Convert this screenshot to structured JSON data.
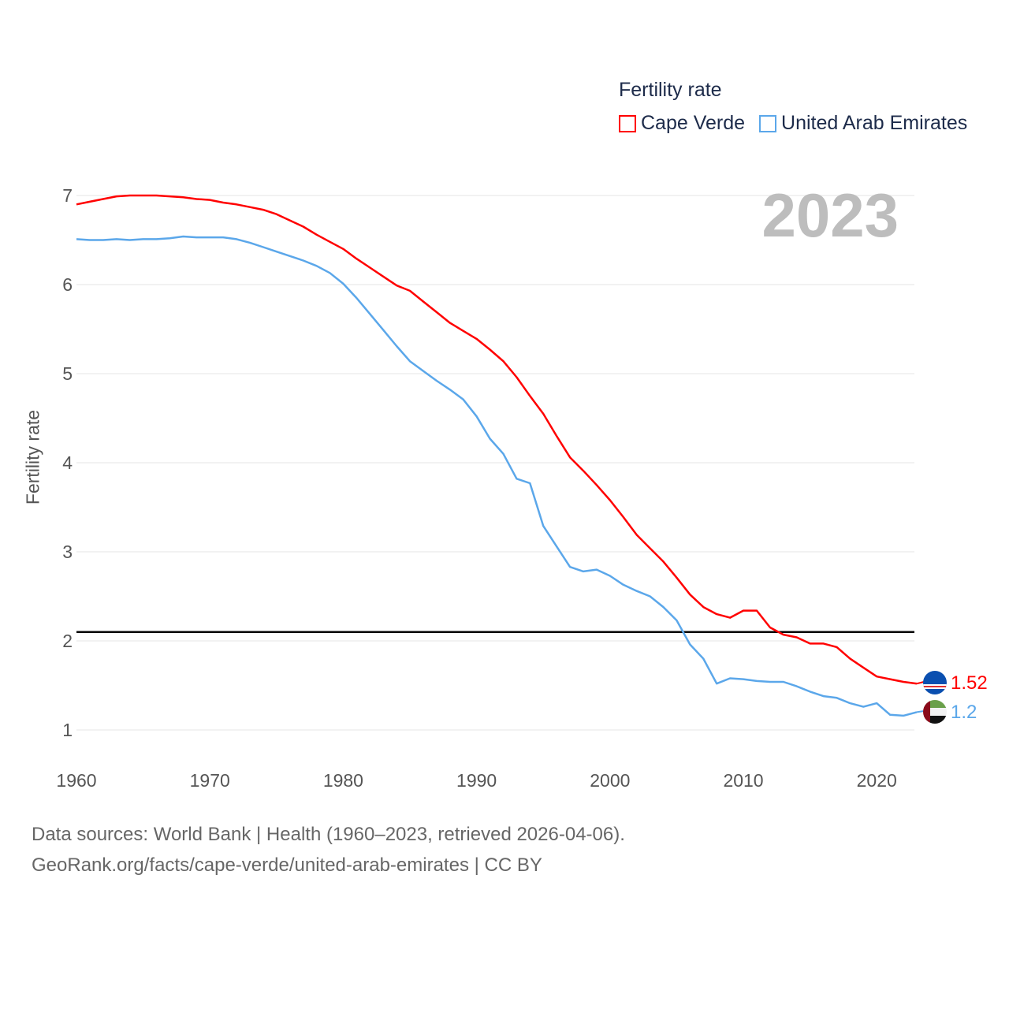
{
  "chart_data": {
    "type": "line",
    "title": "Fertility rate",
    "ylabel": "Fertility rate",
    "xlabel": "",
    "xlim": [
      1960,
      2023
    ],
    "ylim": [
      1,
      7
    ],
    "x_ticks": [
      1960,
      1970,
      1980,
      1990,
      2000,
      2010,
      2020
    ],
    "y_ticks": [
      1,
      2,
      3,
      4,
      5,
      6,
      7
    ],
    "grid": true,
    "legend_position": "top-right",
    "year_label": "2023",
    "reference_line": {
      "value": 2.1,
      "color": "#000000"
    },
    "x": [
      1960,
      1961,
      1962,
      1963,
      1964,
      1965,
      1966,
      1967,
      1968,
      1969,
      1970,
      1971,
      1972,
      1973,
      1974,
      1975,
      1976,
      1977,
      1978,
      1979,
      1980,
      1981,
      1982,
      1983,
      1984,
      1985,
      1986,
      1987,
      1988,
      1989,
      1990,
      1991,
      1992,
      1993,
      1994,
      1995,
      1996,
      1997,
      1998,
      1999,
      2000,
      2001,
      2002,
      2003,
      2004,
      2005,
      2006,
      2007,
      2008,
      2009,
      2010,
      2011,
      2012,
      2013,
      2014,
      2015,
      2016,
      2017,
      2018,
      2019,
      2020,
      2021,
      2022,
      2023
    ],
    "series": [
      {
        "name": "Cape Verde",
        "color": "#ff0000",
        "end_label": "1.52",
        "values": [
          6.9,
          6.93,
          6.96,
          6.99,
          7.0,
          7.0,
          7.0,
          6.99,
          6.98,
          6.96,
          6.95,
          6.92,
          6.9,
          6.87,
          6.84,
          6.79,
          6.72,
          6.65,
          6.56,
          6.48,
          6.4,
          6.29,
          6.19,
          6.09,
          5.99,
          5.93,
          5.81,
          5.69,
          5.57,
          5.48,
          5.39,
          5.27,
          5.14,
          4.96,
          4.75,
          4.55,
          4.3,
          4.06,
          3.91,
          3.75,
          3.58,
          3.39,
          3.19,
          3.04,
          2.89,
          2.71,
          2.52,
          2.38,
          2.3,
          2.26,
          2.34,
          2.34,
          2.15,
          2.07,
          2.04,
          1.97,
          1.97,
          1.93,
          1.8,
          1.7,
          1.6,
          1.57,
          1.54,
          1.52
        ]
      },
      {
        "name": "United Arab Emirates",
        "color": "#5ba7ea",
        "end_label": "1.2",
        "values": [
          6.51,
          6.5,
          6.5,
          6.51,
          6.5,
          6.51,
          6.51,
          6.52,
          6.54,
          6.53,
          6.53,
          6.53,
          6.51,
          6.47,
          6.42,
          6.37,
          6.32,
          6.27,
          6.21,
          6.13,
          6.01,
          5.85,
          5.67,
          5.49,
          5.31,
          5.14,
          5.03,
          4.92,
          4.82,
          4.71,
          4.52,
          4.27,
          4.1,
          3.82,
          3.77,
          3.29,
          3.06,
          2.83,
          2.78,
          2.8,
          2.73,
          2.63,
          2.56,
          2.5,
          2.38,
          2.23,
          1.96,
          1.8,
          1.52,
          1.58,
          1.57,
          1.55,
          1.54,
          1.54,
          1.49,
          1.43,
          1.38,
          1.36,
          1.3,
          1.26,
          1.3,
          1.17,
          1.16,
          1.2
        ]
      }
    ]
  },
  "legend": {
    "title": "Fertility rate",
    "items": [
      "Cape Verde",
      "United Arab Emirates"
    ]
  },
  "footer": {
    "line1": "Data sources: World Bank | Health (1960–2023, retrieved 2026-04-06).",
    "line2": "GeoRank.org/facts/cape-verde/united-arab-emirates | CC BY"
  }
}
